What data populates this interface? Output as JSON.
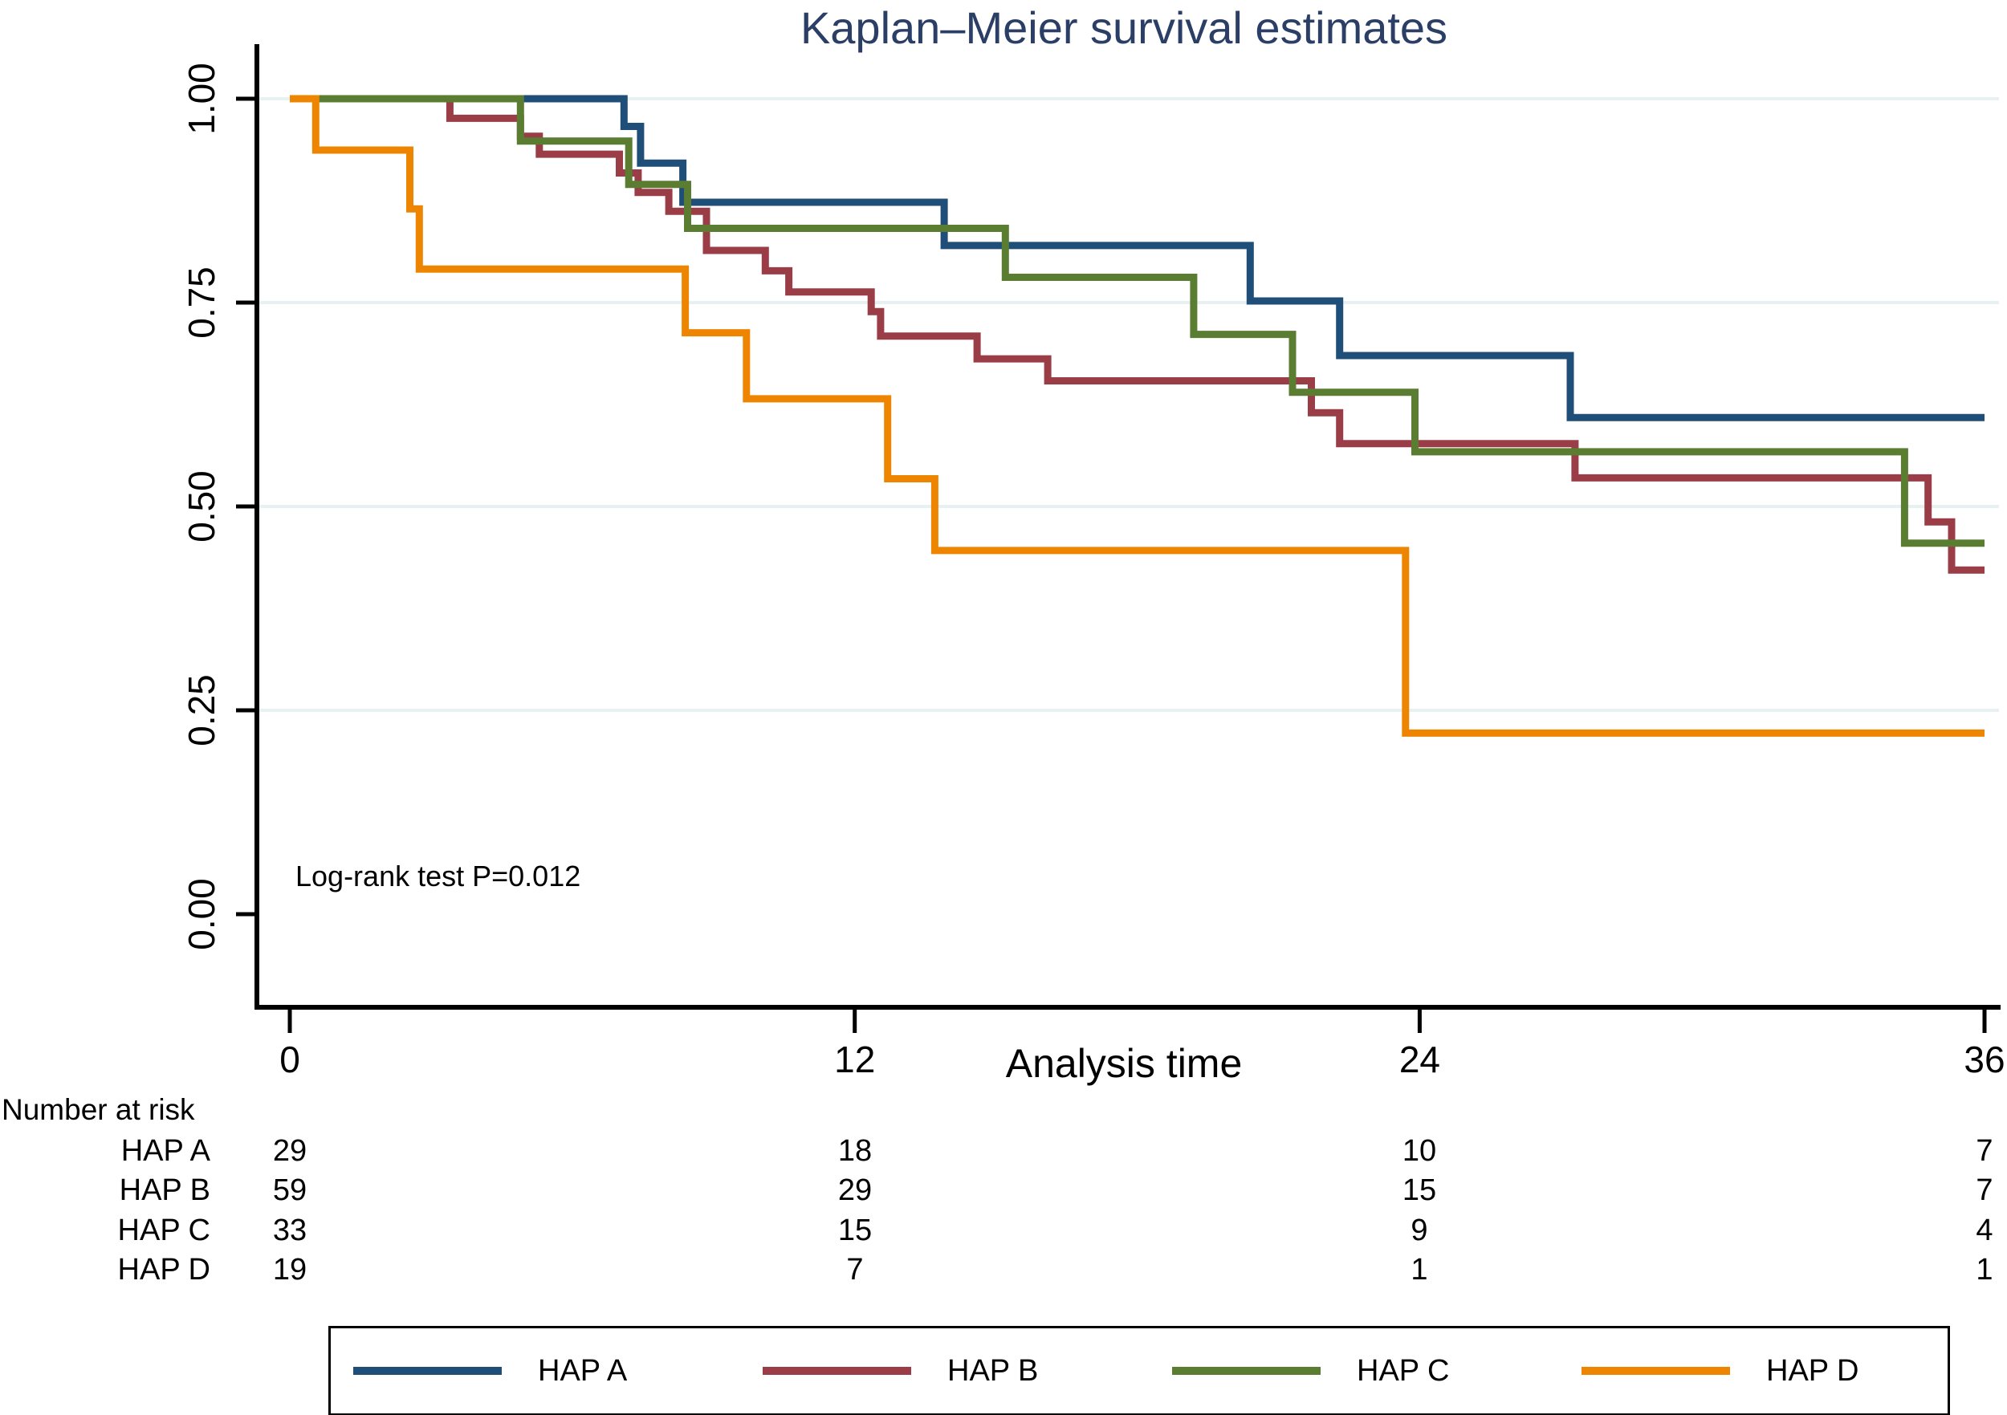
{
  "title": "Kaplan–Meier survival estimates",
  "annotation": "Log-rank test P=0.012",
  "colors": {
    "title": "#2b3e66",
    "gridline": "#e8f1f2",
    "axis": "#000000",
    "hap_a": "#1f4e79",
    "hap_b": "#9a3d47",
    "hap_c": "#5b7d31",
    "hap_d": "#ee8500"
  },
  "chart_data": {
    "type": "line",
    "subtype": "kaplan-meier-step",
    "title": "Kaplan–Meier survival estimates",
    "xlabel": "Analysis time",
    "ylabel": "",
    "xlim": [
      0,
      36
    ],
    "ylim": [
      0,
      1
    ],
    "xticks": [
      "0",
      "12",
      "24",
      "36"
    ],
    "xtick_values": [
      0,
      12,
      24,
      36
    ],
    "yticks": [
      "1.00",
      "0.75",
      "0.50",
      "0.25",
      "0.00"
    ],
    "ytick_values": [
      1.0,
      0.75,
      0.5,
      0.25,
      0.0
    ],
    "grid": "horizontal",
    "grid_lines": [
      1.0,
      0.75,
      0.5,
      0.25
    ],
    "legend_position": "bottom",
    "annotation": "Log-rank test P=0.012",
    "series": [
      {
        "name": "HAP A",
        "color": "#1f4e79",
        "steps": [
          [
            0,
            1.0
          ],
          [
            7.1,
            0.966
          ],
          [
            7.45,
            0.921
          ],
          [
            8.35,
            0.873
          ],
          [
            13.9,
            0.82
          ],
          [
            20.4,
            0.752
          ],
          [
            22.3,
            0.685
          ],
          [
            27.2,
            0.609
          ]
        ]
      },
      {
        "name": "HAP B",
        "color": "#9a3d47",
        "steps": [
          [
            0,
            1.0
          ],
          [
            3.4,
            0.976
          ],
          [
            4.9,
            0.954
          ],
          [
            5.3,
            0.932
          ],
          [
            7.0,
            0.909
          ],
          [
            7.4,
            0.885
          ],
          [
            8.05,
            0.862
          ],
          [
            8.85,
            0.814
          ],
          [
            10.1,
            0.789
          ],
          [
            10.6,
            0.763
          ],
          [
            12.35,
            0.739
          ],
          [
            12.55,
            0.709
          ],
          [
            14.6,
            0.681
          ],
          [
            16.1,
            0.654
          ],
          [
            21.7,
            0.615
          ],
          [
            22.3,
            0.577
          ],
          [
            27.3,
            0.535
          ],
          [
            34.8,
            0.481
          ],
          [
            35.3,
            0.422
          ]
        ]
      },
      {
        "name": "HAP C",
        "color": "#5b7d31",
        "steps": [
          [
            0,
            1.0
          ],
          [
            4.9,
            0.948
          ],
          [
            7.2,
            0.895
          ],
          [
            8.45,
            0.841
          ],
          [
            15.2,
            0.781
          ],
          [
            19.2,
            0.711
          ],
          [
            21.3,
            0.64
          ],
          [
            23.9,
            0.567
          ],
          [
            34.3,
            0.455
          ]
        ]
      },
      {
        "name": "HAP D",
        "color": "#ee8500",
        "steps": [
          [
            0,
            1.0
          ],
          [
            0.55,
            0.937
          ],
          [
            2.55,
            0.865
          ],
          [
            2.75,
            0.791
          ],
          [
            8.4,
            0.713
          ],
          [
            9.7,
            0.632
          ],
          [
            12.7,
            0.534
          ],
          [
            13.7,
            0.446
          ],
          [
            23.7,
            0.222
          ]
        ]
      }
    ]
  },
  "risk_table": {
    "heading": "Number at risk",
    "time_points": [
      0,
      12,
      24,
      36
    ],
    "rows": [
      {
        "label": "HAP A",
        "counts": [
          "29",
          "18",
          "10",
          "7"
        ]
      },
      {
        "label": "HAP B",
        "counts": [
          "59",
          "29",
          "15",
          "7"
        ]
      },
      {
        "label": "HAP C",
        "counts": [
          "33",
          "15",
          "9",
          "4"
        ]
      },
      {
        "label": "HAP D",
        "counts": [
          "19",
          "7",
          "1",
          "1"
        ]
      }
    ]
  },
  "legend": {
    "entries": [
      {
        "label": "HAP A",
        "color": "#1f4e79"
      },
      {
        "label": "HAP B",
        "color": "#9a3d47"
      },
      {
        "label": "HAP C",
        "color": "#5b7d31"
      },
      {
        "label": "HAP D",
        "color": "#ee8500"
      }
    ]
  }
}
